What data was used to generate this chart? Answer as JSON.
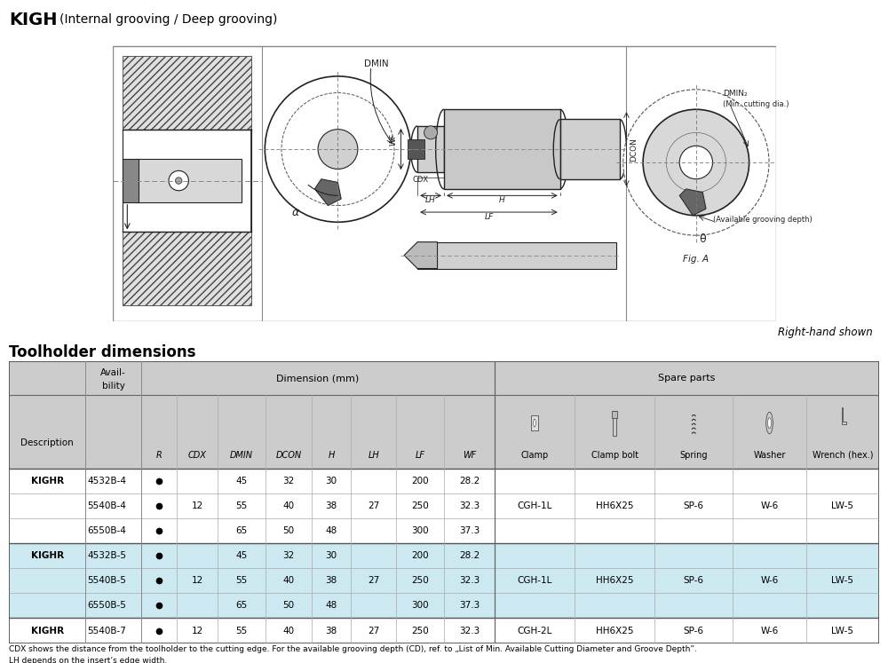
{
  "title_bold": "KIGH",
  "title_regular": "(Internal grooving / Deep grooving)",
  "right_hand_shown": "Right-hand shown",
  "toolholder_dimensions": "Toolholder dimensions",
  "fig_a": "Fig. A",
  "min_cutting_dia": "(Min. cutting dia.)",
  "available_grooving_depth": "(Available grooving depth)",
  "background_color": "#ffffff",
  "table_header_bg": "#cccccc",
  "table_subheader_bg": "#cccccc",
  "table_alt_row_bg": "#cce8f0",
  "table_white_bg": "#ffffff",
  "diagram_border": "#555555",
  "line_color": "#222222",
  "data_rows": [
    [
      "KIGHR",
      "4532B-4",
      "●",
      "",
      "45",
      "32",
      "30",
      "",
      "200",
      "28.2",
      "",
      "",
      "",
      "",
      ""
    ],
    [
      "",
      "5540B-4",
      "●",
      "12",
      "55",
      "40",
      "38",
      "27",
      "250",
      "32.3",
      "CGH-1L",
      "HH6X25",
      "SP-6",
      "W-6",
      "LW-5"
    ],
    [
      "",
      "6550B-4",
      "●",
      "",
      "65",
      "50",
      "48",
      "",
      "300",
      "37.3",
      "",
      "",
      "",
      "",
      ""
    ],
    [
      "KIGHR",
      "4532B-5",
      "●",
      "",
      "45",
      "32",
      "30",
      "",
      "200",
      "28.2",
      "",
      "",
      "",
      "",
      ""
    ],
    [
      "",
      "5540B-5",
      "●",
      "12",
      "55",
      "40",
      "38",
      "27",
      "250",
      "32.3",
      "CGH-1L",
      "HH6X25",
      "SP-6",
      "W-6",
      "LW-5"
    ],
    [
      "",
      "6550B-5",
      "●",
      "",
      "65",
      "50",
      "48",
      "",
      "300",
      "37.3",
      "",
      "",
      "",
      "",
      ""
    ],
    [
      "KIGHR",
      "5540B-7",
      "●",
      "12",
      "55",
      "40",
      "38",
      "27",
      "250",
      "32.3",
      "CGH-2L",
      "HH6X25",
      "SP-6",
      "W-6",
      "LW-5"
    ]
  ],
  "footnote1": "CDX shows the distance from the toolholder to the cutting edge. For the available grooving depth (CD), ref. to „List of Min. Available Cutting Diameter and Groove Depth”.",
  "footnote2": "LH depends on the insert’s edge width.",
  "col_labels": [
    "R",
    "CDX",
    "DMIN",
    "DCON",
    "H",
    "LH",
    "LF",
    "WF"
  ],
  "spare_labels": [
    "Clamp",
    "Clamp bolt",
    "Spring",
    "Washer",
    "Wrench (hex.)"
  ]
}
